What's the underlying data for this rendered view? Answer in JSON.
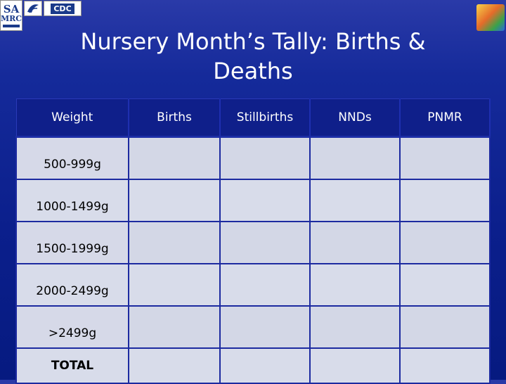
{
  "logos": {
    "left_mrc_text_top": "SA",
    "left_mrc_text_bottom": "MRC",
    "cdc_text": "CDC",
    "hhs_icon": "hhs-eagle-icon",
    "right_icon": "hands-collage-icon"
  },
  "slide": {
    "title_line1": "Nursery Month’s Tally: Births &",
    "title_line2": "Deaths"
  },
  "table": {
    "headers": [
      "Weight",
      "Births",
      "Stillbirths",
      "NNDs",
      "PNMR"
    ],
    "rows": [
      {
        "label": "500-999g",
        "cells": [
          "",
          "",
          "",
          ""
        ]
      },
      {
        "label": "1000-1499g",
        "cells": [
          "",
          "",
          "",
          ""
        ]
      },
      {
        "label": "1500-1999g",
        "cells": [
          "",
          "",
          "",
          ""
        ]
      },
      {
        "label": "2000-2499g",
        "cells": [
          "",
          "",
          "",
          ""
        ]
      },
      {
        "label": ">2499g",
        "cells": [
          "",
          "",
          "",
          ""
        ]
      },
      {
        "label": "TOTAL",
        "cells": [
          "",
          "",
          "",
          ""
        ]
      }
    ]
  },
  "colors": {
    "background": "#0b1f8c",
    "header_bg": "#0f1f8a",
    "cell_bg": "#d3d7e6",
    "title_text": "#ffffff"
  }
}
